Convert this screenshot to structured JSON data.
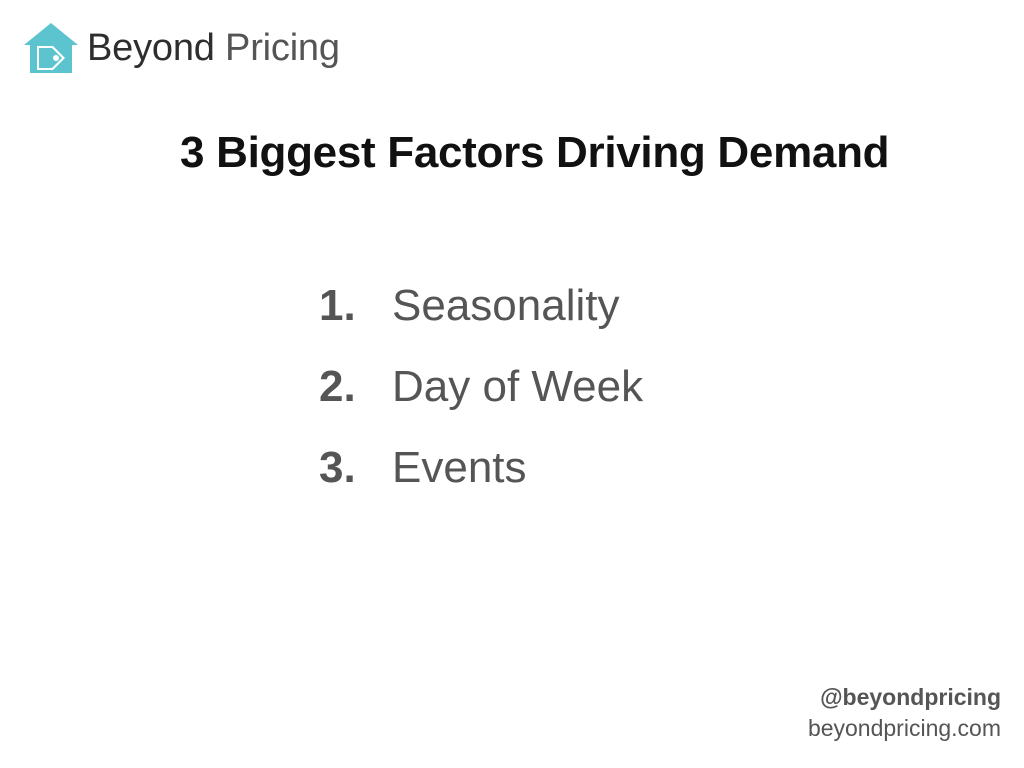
{
  "brand": {
    "name_primary": "Beyond",
    "name_secondary": "Pricing",
    "icon": "house-price-tag-icon",
    "accent_color": "#5bc4cf"
  },
  "slide": {
    "title": "3 Biggest Factors Driving Demand",
    "factors": [
      {
        "number": "1.",
        "label": "Seasonality"
      },
      {
        "number": "2.",
        "label": "Day of Week"
      },
      {
        "number": "3.",
        "label": "Events"
      }
    ]
  },
  "footer": {
    "handle": "@beyondpricing",
    "website": "beyondpricing.com"
  }
}
